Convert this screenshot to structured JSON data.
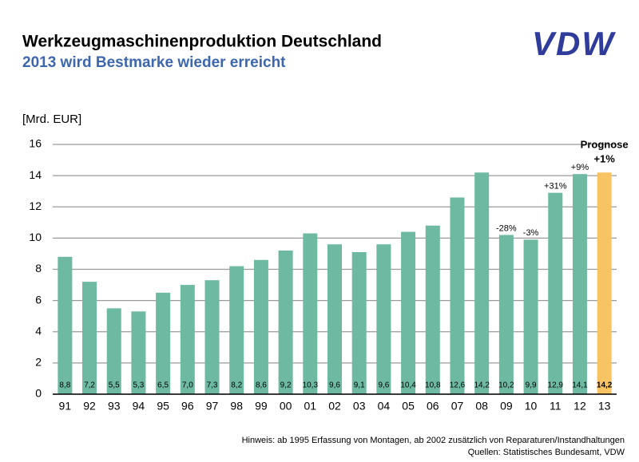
{
  "chart_data": {
    "type": "bar",
    "title": "Werkzeugmaschinenproduktion Deutschland",
    "subtitle": "2013 wird Bestmarke wieder erreicht",
    "logo": "VDW",
    "y_axis_label": "[Mrd. EUR]",
    "categories": [
      "91",
      "92",
      "93",
      "94",
      "95",
      "96",
      "97",
      "98",
      "99",
      "00",
      "01",
      "02",
      "03",
      "04",
      "05",
      "06",
      "07",
      "08",
      "09",
      "10",
      "11",
      "12",
      "13"
    ],
    "values": [
      8.8,
      7.2,
      5.5,
      5.3,
      6.5,
      7.0,
      7.3,
      8.2,
      8.6,
      9.2,
      10.3,
      9.6,
      9.1,
      9.6,
      10.4,
      10.8,
      12.6,
      14.2,
      10.2,
      9.9,
      12.9,
      14.1,
      14.2
    ],
    "value_labels": [
      "8,8",
      "7,2",
      "5,5",
      "5,3",
      "6,5",
      "7,0",
      "7,3",
      "8,2",
      "8,6",
      "9,2",
      "10,3",
      "9,6",
      "9,1",
      "9,6",
      "10,4",
      "10,8",
      "12,6",
      "14,2",
      "10,2",
      "9,9",
      "12,9",
      "14,1",
      "14,2"
    ],
    "colors": [
      "#6db9a1",
      "#6db9a1",
      "#6db9a1",
      "#6db9a1",
      "#6db9a1",
      "#6db9a1",
      "#6db9a1",
      "#6db9a1",
      "#6db9a1",
      "#6db9a1",
      "#6db9a1",
      "#6db9a1",
      "#6db9a1",
      "#6db9a1",
      "#6db9a1",
      "#6db9a1",
      "#6db9a1",
      "#6db9a1",
      "#6db9a1",
      "#6db9a1",
      "#6db9a1",
      "#6db9a1",
      "#f7c363"
    ],
    "annotations": [
      {
        "category": "09",
        "text": "-28%"
      },
      {
        "category": "10",
        "text": "-3%"
      },
      {
        "category": "11",
        "text": "+31%"
      },
      {
        "category": "12",
        "text": "+9%"
      },
      {
        "category": "13",
        "text": "Prognose"
      },
      {
        "category": "13",
        "text": "+1%"
      }
    ],
    "ylim": [
      0,
      16
    ],
    "yticks": [
      0,
      2,
      4,
      6,
      8,
      10,
      12,
      14,
      16
    ],
    "grid": true,
    "notes": [
      "Hinweis: ab 1995 Erfassung von Montagen, ab 2002 zusätzlich von Reparaturen/Instandhaltungen",
      "Quellen: Statistisches Bundesamt, VDW"
    ]
  }
}
